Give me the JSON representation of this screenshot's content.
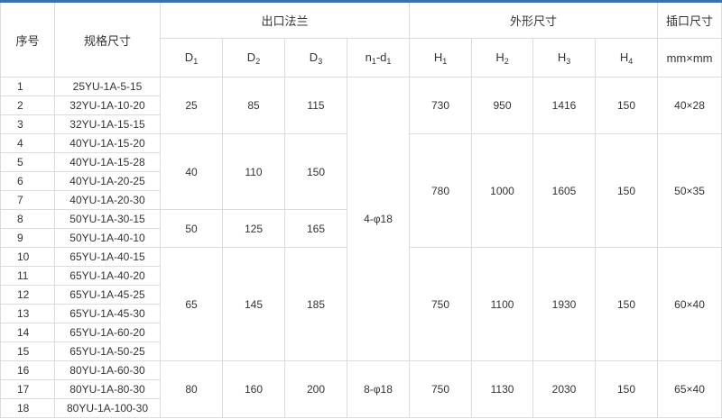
{
  "headers": {
    "seq": "序号",
    "model": "规格尺寸",
    "flange": "出口法兰",
    "shape": "外形尺寸",
    "socket": "插口尺寸",
    "D1": [
      "D",
      "1"
    ],
    "D2": [
      "D",
      "2"
    ],
    "D3": [
      "D",
      "3"
    ],
    "n1d1": [
      "n",
      "1",
      "-d",
      "1"
    ],
    "H1": [
      "H",
      "1"
    ],
    "H2": [
      "H",
      "2"
    ],
    "H3": [
      "H",
      "3"
    ],
    "H4": [
      "H",
      "4"
    ],
    "socket_unit": "mm×mm"
  },
  "rows": [
    {
      "seq": "1",
      "model": "25YU-1A-5-15"
    },
    {
      "seq": "2",
      "model": "32YU-1A-10-20"
    },
    {
      "seq": "3",
      "model": "32YU-1A-15-15"
    },
    {
      "seq": "4",
      "model": "40YU-1A-15-20"
    },
    {
      "seq": "5",
      "model": "40YU-1A-15-28"
    },
    {
      "seq": "6",
      "model": "40YU-1A-20-25"
    },
    {
      "seq": "7",
      "model": "40YU-1A-20-30"
    },
    {
      "seq": "8",
      "model": "50YU-1A-30-15"
    },
    {
      "seq": "9",
      "model": "50YU-1A-40-10"
    },
    {
      "seq": "10",
      "model": "65YU-1A-40-15"
    },
    {
      "seq": "11",
      "model": "65YU-1A-40-20"
    },
    {
      "seq": "12",
      "model": "65YU-1A-45-25"
    },
    {
      "seq": "13",
      "model": "65YU-1A-45-30"
    },
    {
      "seq": "14",
      "model": "65YU-1A-60-20"
    },
    {
      "seq": "15",
      "model": "65YU-1A-50-25"
    },
    {
      "seq": "16",
      "model": "80YU-1A-60-30"
    },
    {
      "seq": "17",
      "model": "80YU-1A-80-30"
    },
    {
      "seq": "18",
      "model": "80YU-1A-100-30"
    }
  ],
  "flange_groups": [
    {
      "seq_from": 1,
      "seq_to": 3,
      "D1": "25",
      "D2": "85",
      "D3": "115"
    },
    {
      "seq_from": 4,
      "seq_to": 7,
      "D1": "40",
      "D2": "110",
      "D3": "150"
    },
    {
      "seq_from": 8,
      "seq_to": 9,
      "D1": "50",
      "D2": "125",
      "D3": "165"
    },
    {
      "seq_from": 10,
      "seq_to": 15,
      "D1": "65",
      "D2": "145",
      "D3": "185"
    },
    {
      "seq_from": 16,
      "seq_to": 18,
      "D1": "80",
      "D2": "160",
      "D3": "200"
    }
  ],
  "bolt_groups": [
    {
      "seq_from": 1,
      "seq_to": 15,
      "n1d1": "4-φ18"
    },
    {
      "seq_from": 16,
      "seq_to": 18,
      "n1d1": "8-φ18"
    }
  ],
  "shape_groups": [
    {
      "seq_from": 1,
      "seq_to": 3,
      "H1": "730",
      "H2": "950",
      "H3": "1416",
      "H4": "150",
      "socket": "40×28"
    },
    {
      "seq_from": 4,
      "seq_to": 9,
      "H1": "780",
      "H2": "1000",
      "H3": "1605",
      "H4": "150",
      "socket": "50×35"
    },
    {
      "seq_from": 10,
      "seq_to": 15,
      "H1": "750",
      "H2": "1100",
      "H3": "1930",
      "H4": "150",
      "socket": "60×40"
    },
    {
      "seq_from": 16,
      "seq_to": 18,
      "H1": "750",
      "H2": "1130",
      "H3": "2030",
      "H4": "150",
      "socket": "65×40"
    }
  ]
}
